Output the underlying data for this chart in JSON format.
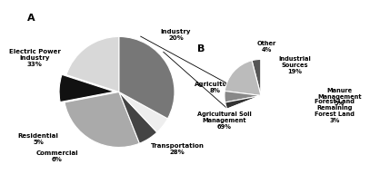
{
  "chart_A": {
    "values": [
      20,
      8,
      28,
      6,
      5,
      33
    ],
    "colors": [
      "#d8d8d8",
      "#111111",
      "#aaaaaa",
      "#444444",
      "#eeeeee",
      "#777777"
    ],
    "label_texts": [
      "Industry\n20%",
      "Agriculture\n8%",
      "Transportation\n28%",
      "Commercial\n6%",
      "Residential\n5%",
      "Electric Power\nIndustry\n33%"
    ],
    "startangle": 90,
    "explode": [
      0,
      0.08,
      0,
      0,
      0,
      0
    ]
  },
  "chart_B": {
    "values": [
      4,
      19,
      5,
      3,
      69
    ],
    "colors": [
      "#555555",
      "#bbbbbb",
      "#888888",
      "#333333",
      "#ffffff"
    ],
    "label_texts": [
      "Other\n4%",
      "Industrial\nSources\n19%",
      "Manure\nManagement\n5%",
      "Forest Land\nRemaining\nForest Land\n3%",
      "Agricultural Soil\nManagement\n69%"
    ],
    "startangle": 90
  },
  "background_color": "#ffffff",
  "label_fontsize_A": 5.0,
  "label_fontsize_B": 4.8
}
